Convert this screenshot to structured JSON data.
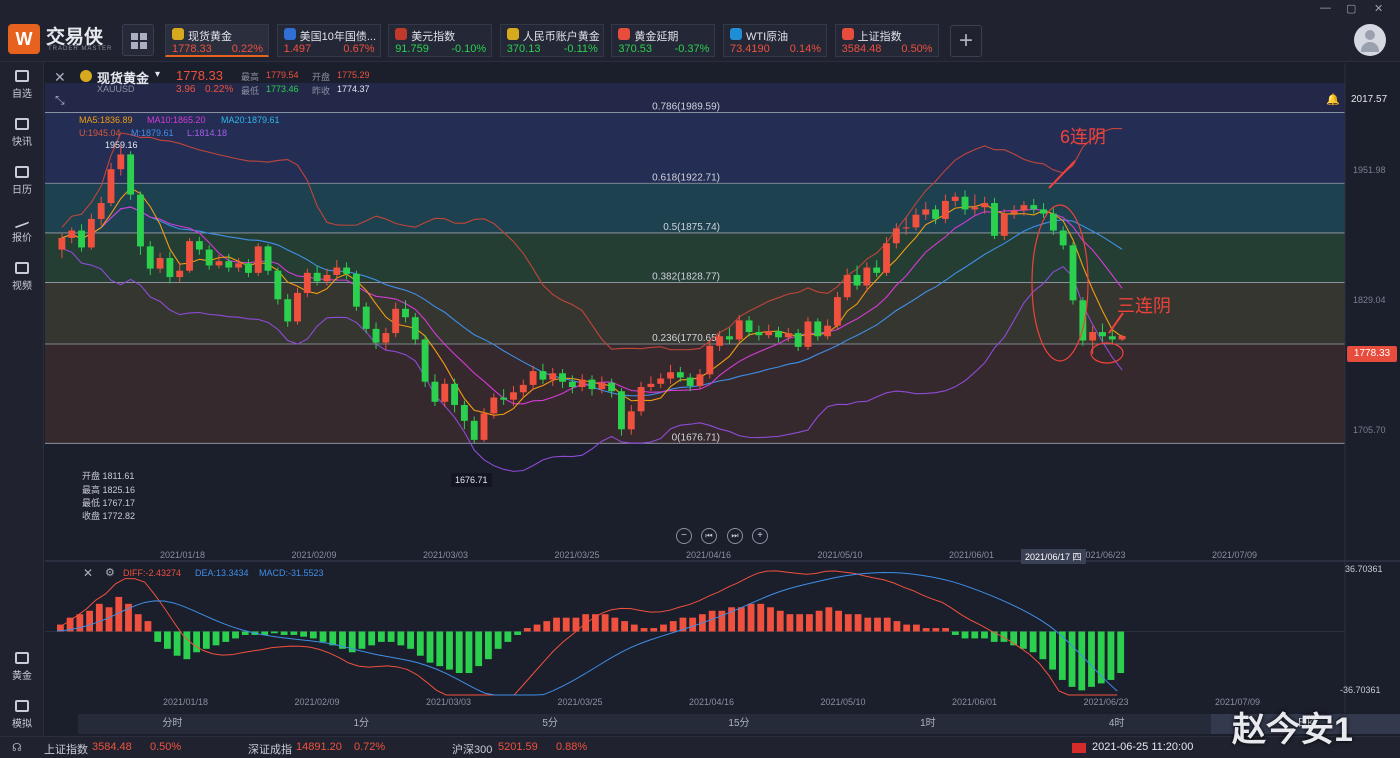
{
  "app": {
    "brand": "交易侠",
    "brand_sub": "TRADER MASTER",
    "logo_glyph": "W",
    "window_controls": [
      "—",
      "▢",
      "✕"
    ]
  },
  "quote_tabs": [
    {
      "name": "现货黄金",
      "price": "1778.33",
      "change": "0.22%",
      "dir": "up",
      "icon": "gold-icon",
      "icon_color": "#d6a91e",
      "active": true
    },
    {
      "name": "美国10年国债...",
      "price": "1.497",
      "change": "0.67%",
      "dir": "up",
      "icon": "bar-chart-icon",
      "icon_color": "#2f6fd6"
    },
    {
      "name": "美元指数",
      "price": "91.759",
      "change": "-0.10%",
      "dir": "dn",
      "icon": "us-flag-icon",
      "icon_color": "#c0392b"
    },
    {
      "name": "人民币账户黄金",
      "price": "370.13",
      "change": "-0.11%",
      "dir": "dn",
      "icon": "gold-icon",
      "icon_color": "#d6a91e"
    },
    {
      "name": "黄金延期",
      "price": "370.53",
      "change": "-0.37%",
      "dir": "dn",
      "icon": "gold-bars-icon",
      "icon_color": "#e74c3c"
    },
    {
      "name": "WTI原油",
      "price": "73.4190",
      "change": "0.14%",
      "dir": "up",
      "icon": "oil-icon",
      "icon_color": "#1e8fd6"
    },
    {
      "name": "上证指数",
      "price": "3584.48",
      "change": "0.50%",
      "dir": "up",
      "icon": "index-icon",
      "icon_color": "#e74c3c"
    }
  ],
  "sidebar": [
    {
      "label": "自选",
      "icon": "star-bookmark-icon"
    },
    {
      "label": "快讯",
      "icon": "news-icon"
    },
    {
      "label": "日历",
      "icon": "calendar-icon"
    },
    {
      "label": "报价",
      "icon": "quote-line-icon"
    },
    {
      "label": "视频",
      "icon": "video-play-icon"
    },
    {
      "label": "黄金",
      "icon": "gold-grid-icon"
    },
    {
      "label": "模拟",
      "icon": "wallet-icon"
    }
  ],
  "symbol": {
    "name": "现货黄金",
    "code": "XAUUSD",
    "price": "1778.33",
    "change": "3.96",
    "change_pct": "0.22%",
    "high_label": "最高",
    "high": "1779.54",
    "open_label": "开盘",
    "open": "1775.29",
    "low_label": "最低",
    "low": "1773.46",
    "prev_label": "昨收",
    "prev": "1774.37"
  },
  "indicators": {
    "ma5": "MA5:1836.89",
    "ma10": "MA10:1865.20",
    "ma20": "MA20:1879.61",
    "boll_u": "U:1945.04",
    "boll_m": "M:1879.61",
    "boll_l": "L:1814.18"
  },
  "price_axis": {
    "top": "2017.57",
    "l1": "1951.98",
    "l2": "1829.04",
    "l3": "1705.70",
    "current": "1778.33"
  },
  "fib_levels": [
    {
      "label": "0.786(1989.59)",
      "value": 1989.59,
      "color": "#2b3c78"
    },
    {
      "label": "0.618(1922.71)",
      "value": 1922.71,
      "color": "#1f5e6b"
    },
    {
      "label": "0.5(1875.74)",
      "value": 1875.74,
      "color": "#2c5a3c"
    },
    {
      "label": "0.382(1828.77)",
      "value": 1828.77,
      "color": "#4a4a34"
    },
    {
      "label": "0.236(1770.65)",
      "value": 1770.65,
      "color": "#4a3332"
    },
    {
      "label": "0(1676.71)",
      "value": 1676.71,
      "color": "#4a3332"
    }
  ],
  "annotations": {
    "peak": "1959.16",
    "trough": "1676.71",
    "six_down": "6连阴",
    "three_down": "三连阴"
  },
  "ohlc_box": {
    "open": "开盘 1811.61",
    "high": "最高 1825.16",
    "low": "最低 1767.17",
    "close": "收盘 1772.82"
  },
  "date_axis": [
    "2021/01/18",
    "2021/02/09",
    "2021/03/03",
    "2021/03/25",
    "2021/04/16",
    "2021/05/10",
    "2021/06/01",
    "2021/06/23",
    "2021/07/09"
  ],
  "crosshair_date": "2021/06/17 四",
  "macd": {
    "diff": "DIFF:-2.43274",
    "dea": "DEA:13.3434",
    "macd": "MACD:-31.5523",
    "top": "36.70361",
    "bottom": "-36.70361"
  },
  "periods": [
    "分时",
    "1分",
    "5分",
    "15分",
    "1时",
    "4时",
    "日K"
  ],
  "active_period": "日K",
  "status": {
    "sh_name": "上证指数",
    "sh_val": "3584.48",
    "sh_chg": "0.50%",
    "sz_name": "深证成指",
    "sz_val": "14891.20",
    "sz_chg": "0.72%",
    "hs_name": "沪深300",
    "hs_val": "5201.59",
    "hs_chg": "0.88%",
    "datetime": "2021-06-25 11:20:00"
  },
  "watermark": "赵今安1",
  "chart_data": {
    "type": "candlestick",
    "candles": [
      {
        "o": 1860,
        "c": 1871,
        "h": 1875,
        "l": 1852
      },
      {
        "o": 1871,
        "c": 1878,
        "h": 1881,
        "l": 1866
      },
      {
        "o": 1878,
        "c": 1862,
        "h": 1884,
        "l": 1858
      },
      {
        "o": 1862,
        "c": 1889,
        "h": 1894,
        "l": 1860
      },
      {
        "o": 1889,
        "c": 1904,
        "h": 1910,
        "l": 1883
      },
      {
        "o": 1904,
        "c": 1936,
        "h": 1942,
        "l": 1901
      },
      {
        "o": 1936,
        "c": 1950,
        "h": 1959.16,
        "l": 1930
      },
      {
        "o": 1950,
        "c": 1912,
        "h": 1953,
        "l": 1907
      },
      {
        "o": 1912,
        "c": 1863,
        "h": 1915,
        "l": 1855
      },
      {
        "o": 1863,
        "c": 1842,
        "h": 1868,
        "l": 1836
      },
      {
        "o": 1842,
        "c": 1852,
        "h": 1857,
        "l": 1838
      },
      {
        "o": 1852,
        "c": 1834,
        "h": 1858,
        "l": 1828
      },
      {
        "o": 1834,
        "c": 1840,
        "h": 1848,
        "l": 1829
      },
      {
        "o": 1840,
        "c": 1868,
        "h": 1871,
        "l": 1838
      },
      {
        "o": 1868,
        "c": 1860,
        "h": 1872,
        "l": 1855
      },
      {
        "o": 1860,
        "c": 1845,
        "h": 1864,
        "l": 1841
      },
      {
        "o": 1845,
        "c": 1849,
        "h": 1855,
        "l": 1842
      },
      {
        "o": 1849,
        "c": 1843,
        "h": 1856,
        "l": 1839
      },
      {
        "o": 1843,
        "c": 1847,
        "h": 1852,
        "l": 1839
      },
      {
        "o": 1847,
        "c": 1838,
        "h": 1851,
        "l": 1834
      },
      {
        "o": 1838,
        "c": 1863,
        "h": 1866,
        "l": 1835
      },
      {
        "o": 1863,
        "c": 1840,
        "h": 1865,
        "l": 1836
      },
      {
        "o": 1840,
        "c": 1813,
        "h": 1843,
        "l": 1808
      },
      {
        "o": 1813,
        "c": 1792,
        "h": 1818,
        "l": 1787
      },
      {
        "o": 1792,
        "c": 1819,
        "h": 1824,
        "l": 1789
      },
      {
        "o": 1819,
        "c": 1838,
        "h": 1842,
        "l": 1815
      },
      {
        "o": 1838,
        "c": 1830,
        "h": 1845,
        "l": 1826
      },
      {
        "o": 1830,
        "c": 1836,
        "h": 1842,
        "l": 1826
      },
      {
        "o": 1836,
        "c": 1843,
        "h": 1850,
        "l": 1831
      },
      {
        "o": 1843,
        "c": 1837,
        "h": 1848,
        "l": 1832
      },
      {
        "o": 1837,
        "c": 1806,
        "h": 1840,
        "l": 1802
      },
      {
        "o": 1806,
        "c": 1785,
        "h": 1810,
        "l": 1781
      },
      {
        "o": 1785,
        "c": 1772,
        "h": 1791,
        "l": 1766
      },
      {
        "o": 1772,
        "c": 1781,
        "h": 1786,
        "l": 1765
      },
      {
        "o": 1781,
        "c": 1804,
        "h": 1810,
        "l": 1777
      },
      {
        "o": 1804,
        "c": 1796,
        "h": 1812,
        "l": 1791
      },
      {
        "o": 1796,
        "c": 1775,
        "h": 1800,
        "l": 1770
      },
      {
        "o": 1775,
        "c": 1735,
        "h": 1779,
        "l": 1730
      },
      {
        "o": 1735,
        "c": 1716,
        "h": 1742,
        "l": 1712
      },
      {
        "o": 1716,
        "c": 1733,
        "h": 1738,
        "l": 1711
      },
      {
        "o": 1733,
        "c": 1713,
        "h": 1738,
        "l": 1706
      },
      {
        "o": 1713,
        "c": 1698,
        "h": 1717,
        "l": 1690
      },
      {
        "o": 1698,
        "c": 1680,
        "h": 1702,
        "l": 1676.71
      },
      {
        "o": 1680,
        "c": 1705,
        "h": 1710,
        "l": 1678
      },
      {
        "o": 1705,
        "c": 1720,
        "h": 1724,
        "l": 1700
      },
      {
        "o": 1720,
        "c": 1718,
        "h": 1728,
        "l": 1713
      },
      {
        "o": 1718,
        "c": 1725,
        "h": 1731,
        "l": 1712
      },
      {
        "o": 1725,
        "c": 1732,
        "h": 1737,
        "l": 1719
      },
      {
        "o": 1732,
        "c": 1745,
        "h": 1750,
        "l": 1727
      },
      {
        "o": 1745,
        "c": 1737,
        "h": 1752,
        "l": 1733
      },
      {
        "o": 1737,
        "c": 1743,
        "h": 1748,
        "l": 1731
      },
      {
        "o": 1743,
        "c": 1735,
        "h": 1747,
        "l": 1729
      },
      {
        "o": 1735,
        "c": 1730,
        "h": 1741,
        "l": 1724
      },
      {
        "o": 1730,
        "c": 1737,
        "h": 1742,
        "l": 1726
      },
      {
        "o": 1737,
        "c": 1728,
        "h": 1741,
        "l": 1722
      },
      {
        "o": 1728,
        "c": 1734,
        "h": 1740,
        "l": 1724
      },
      {
        "o": 1734,
        "c": 1726,
        "h": 1738,
        "l": 1720
      },
      {
        "o": 1726,
        "c": 1690,
        "h": 1729,
        "l": 1684
      },
      {
        "o": 1690,
        "c": 1707,
        "h": 1713,
        "l": 1685
      },
      {
        "o": 1707,
        "c": 1730,
        "h": 1735,
        "l": 1703
      },
      {
        "o": 1730,
        "c": 1733,
        "h": 1740,
        "l": 1726
      },
      {
        "o": 1733,
        "c": 1738,
        "h": 1743,
        "l": 1729
      },
      {
        "o": 1738,
        "c": 1744,
        "h": 1751,
        "l": 1733
      },
      {
        "o": 1744,
        "c": 1739,
        "h": 1749,
        "l": 1735
      },
      {
        "o": 1739,
        "c": 1731,
        "h": 1743,
        "l": 1726
      },
      {
        "o": 1731,
        "c": 1742,
        "h": 1747,
        "l": 1728
      },
      {
        "o": 1742,
        "c": 1769,
        "h": 1775,
        "l": 1738
      },
      {
        "o": 1769,
        "c": 1778,
        "h": 1783,
        "l": 1764
      },
      {
        "o": 1778,
        "c": 1775,
        "h": 1786,
        "l": 1771
      },
      {
        "o": 1775,
        "c": 1793,
        "h": 1798,
        "l": 1772
      },
      {
        "o": 1793,
        "c": 1782,
        "h": 1797,
        "l": 1778
      },
      {
        "o": 1782,
        "c": 1779,
        "h": 1788,
        "l": 1774
      },
      {
        "o": 1779,
        "c": 1783,
        "h": 1789,
        "l": 1776
      },
      {
        "o": 1783,
        "c": 1777,
        "h": 1787,
        "l": 1772
      },
      {
        "o": 1777,
        "c": 1781,
        "h": 1786,
        "l": 1773
      },
      {
        "o": 1781,
        "c": 1768,
        "h": 1785,
        "l": 1764
      },
      {
        "o": 1768,
        "c": 1792,
        "h": 1796,
        "l": 1765
      },
      {
        "o": 1792,
        "c": 1778,
        "h": 1795,
        "l": 1774
      },
      {
        "o": 1778,
        "c": 1788,
        "h": 1794,
        "l": 1775
      },
      {
        "o": 1788,
        "c": 1815,
        "h": 1820,
        "l": 1784
      },
      {
        "o": 1815,
        "c": 1836,
        "h": 1842,
        "l": 1812
      },
      {
        "o": 1836,
        "c": 1826,
        "h": 1845,
        "l": 1822
      },
      {
        "o": 1826,
        "c": 1843,
        "h": 1848,
        "l": 1820
      },
      {
        "o": 1843,
        "c": 1838,
        "h": 1850,
        "l": 1834
      },
      {
        "o": 1838,
        "c": 1866,
        "h": 1872,
        "l": 1835
      },
      {
        "o": 1866,
        "c": 1880,
        "h": 1885,
        "l": 1861
      },
      {
        "o": 1880,
        "c": 1881,
        "h": 1890,
        "l": 1874
      },
      {
        "o": 1881,
        "c": 1893,
        "h": 1899,
        "l": 1878
      },
      {
        "o": 1893,
        "c": 1898,
        "h": 1905,
        "l": 1888
      },
      {
        "o": 1898,
        "c": 1889,
        "h": 1902,
        "l": 1884
      },
      {
        "o": 1889,
        "c": 1906,
        "h": 1912,
        "l": 1885
      },
      {
        "o": 1906,
        "c": 1910,
        "h": 1914,
        "l": 1901
      },
      {
        "o": 1910,
        "c": 1898,
        "h": 1916,
        "l": 1893
      },
      {
        "o": 1898,
        "c": 1900,
        "h": 1912,
        "l": 1893
      },
      {
        "o": 1900,
        "c": 1904,
        "h": 1910,
        "l": 1894
      },
      {
        "o": 1904,
        "c": 1873,
        "h": 1909,
        "l": 1870
      },
      {
        "o": 1873,
        "c": 1894,
        "h": 1898,
        "l": 1869
      },
      {
        "o": 1894,
        "c": 1897,
        "h": 1902,
        "l": 1889
      },
      {
        "o": 1897,
        "c": 1902,
        "h": 1906,
        "l": 1892
      },
      {
        "o": 1902,
        "c": 1898,
        "h": 1908,
        "l": 1894
      },
      {
        "o": 1898,
        "c": 1894,
        "h": 1904,
        "l": 1890
      },
      {
        "o": 1894,
        "c": 1878,
        "h": 1899,
        "l": 1874
      },
      {
        "o": 1878,
        "c": 1864,
        "h": 1882,
        "l": 1860
      },
      {
        "o": 1864,
        "c": 1812,
        "h": 1867,
        "l": 1808
      },
      {
        "o": 1812,
        "c": 1774,
        "h": 1815,
        "l": 1769
      },
      {
        "o": 1774,
        "c": 1782,
        "h": 1788,
        "l": 1761
      },
      {
        "o": 1782,
        "c": 1778,
        "h": 1790,
        "l": 1773
      },
      {
        "o": 1778,
        "c": 1775,
        "h": 1786,
        "l": 1770
      },
      {
        "o": 1775,
        "c": 1778.33,
        "h": 1779.54,
        "l": 1773.46
      }
    ],
    "ylim": [
      1660,
      2017.57
    ],
    "macd_hist": [
      4,
      8,
      10,
      12,
      16,
      14,
      20,
      16,
      10,
      6,
      -6,
      -10,
      -14,
      -16,
      -12,
      -10,
      -8,
      -6,
      -4,
      -2,
      -2,
      -2,
      -1,
      -2,
      -2,
      -3,
      -4,
      -6,
      -8,
      -10,
      -12,
      -10,
      -8,
      -6,
      -6,
      -8,
      -10,
      -14,
      -18,
      -20,
      -22,
      -24,
      -24,
      -20,
      -16,
      -10,
      -6,
      -2,
      2,
      4,
      6,
      8,
      8,
      8,
      10,
      10,
      10,
      8,
      6,
      4,
      2,
      2,
      4,
      6,
      8,
      8,
      10,
      12,
      12,
      14,
      14,
      16,
      16,
      14,
      12,
      10,
      10,
      10,
      12,
      14,
      12,
      10,
      10,
      8,
      8,
      8,
      6,
      4,
      4,
      2,
      2,
      2,
      -2,
      -4,
      -4,
      -4,
      -6,
      -6,
      -8,
      -10,
      -12,
      -16,
      -22,
      -28,
      -32,
      -34,
      -32,
      -30,
      -28,
      -24
    ],
    "macd_ylim": [
      -36.70361,
      36.70361
    ]
  }
}
